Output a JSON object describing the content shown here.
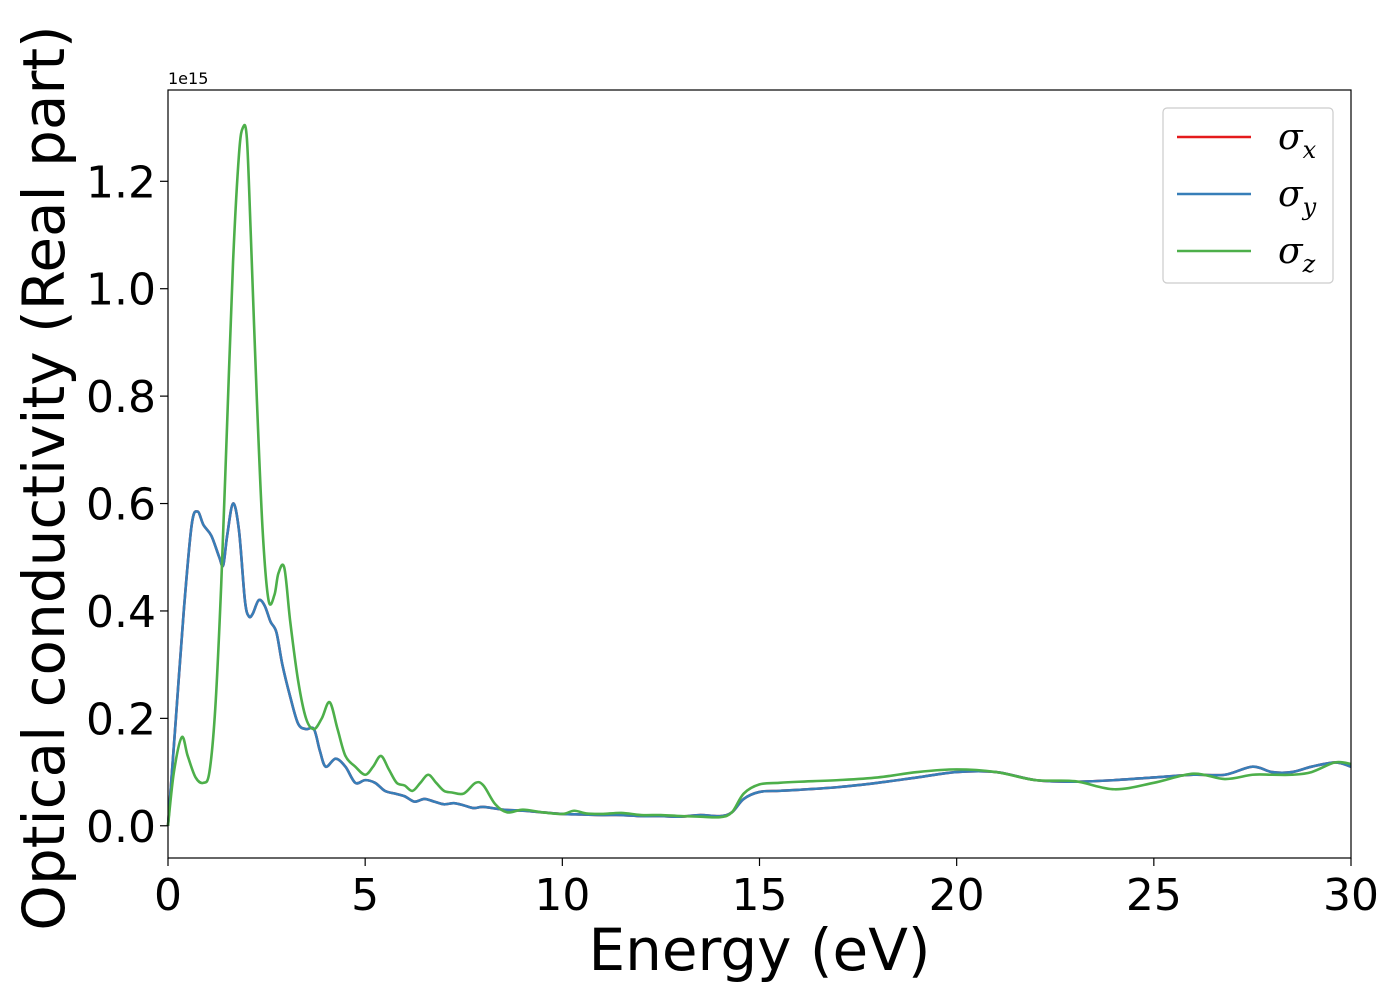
{
  "chart_data": {
    "type": "line",
    "title": "",
    "xlabel": "Energy (eV)",
    "ylabel": "Optical conductivity (Real part)",
    "y_offset_label": "1e15",
    "xlim": [
      0,
      30
    ],
    "ylim": [
      -0.06,
      1.37
    ],
    "xticks": [
      0,
      5,
      10,
      15,
      20,
      25,
      30
    ],
    "xtick_labels": [
      "0",
      "5",
      "10",
      "15",
      "20",
      "25",
      "30"
    ],
    "yticks": [
      0.0,
      0.2,
      0.4,
      0.6,
      0.8,
      1.0,
      1.2
    ],
    "ytick_labels": [
      "0.0",
      "0.2",
      "0.4",
      "0.6",
      "0.8",
      "1.0",
      "1.2"
    ],
    "grid": false,
    "legend_position": "top-right",
    "series": [
      {
        "name": "σx",
        "label_base": "σ",
        "label_sub": "x",
        "color": "#e41a1c",
        "x": [
          0,
          0.2,
          0.4,
          0.6,
          0.75,
          0.9,
          1.1,
          1.3,
          1.4,
          1.5,
          1.65,
          1.8,
          1.95,
          2.05,
          2.15,
          2.3,
          2.45,
          2.6,
          2.75,
          2.9,
          3.1,
          3.3,
          3.5,
          3.7,
          3.85,
          4.0,
          4.25,
          4.5,
          4.75,
          5.0,
          5.25,
          5.5,
          5.75,
          6.0,
          6.25,
          6.5,
          6.75,
          7.0,
          7.25,
          7.5,
          7.75,
          8.0,
          8.5,
          9.0,
          9.5,
          10,
          10.5,
          11,
          11.5,
          12,
          12.5,
          13,
          13.5,
          14,
          14.3,
          14.6,
          15.0,
          15.5,
          16,
          17,
          18,
          19,
          20,
          21,
          22,
          23,
          24,
          25,
          26,
          26.8,
          27.5,
          28,
          28.5,
          29,
          29.6,
          30
        ],
        "y": [
          0.0,
          0.2,
          0.4,
          0.56,
          0.585,
          0.56,
          0.54,
          0.5,
          0.485,
          0.54,
          0.6,
          0.55,
          0.42,
          0.39,
          0.395,
          0.42,
          0.41,
          0.38,
          0.36,
          0.3,
          0.24,
          0.19,
          0.18,
          0.18,
          0.14,
          0.11,
          0.125,
          0.11,
          0.08,
          0.085,
          0.08,
          0.065,
          0.06,
          0.055,
          0.045,
          0.05,
          0.045,
          0.04,
          0.042,
          0.038,
          0.033,
          0.035,
          0.03,
          0.028,
          0.025,
          0.022,
          0.021,
          0.02,
          0.02,
          0.018,
          0.018,
          0.017,
          0.02,
          0.018,
          0.025,
          0.05,
          0.063,
          0.065,
          0.067,
          0.072,
          0.08,
          0.09,
          0.1,
          0.1,
          0.085,
          0.082,
          0.085,
          0.09,
          0.095,
          0.095,
          0.11,
          0.1,
          0.1,
          0.11,
          0.118,
          0.11
        ]
      },
      {
        "name": "σy",
        "label_base": "σ",
        "label_sub": "y",
        "color": "#377eb8",
        "x": [
          0,
          0.2,
          0.4,
          0.6,
          0.75,
          0.9,
          1.1,
          1.3,
          1.4,
          1.5,
          1.65,
          1.8,
          1.95,
          2.05,
          2.15,
          2.3,
          2.45,
          2.6,
          2.75,
          2.9,
          3.1,
          3.3,
          3.5,
          3.7,
          3.85,
          4.0,
          4.25,
          4.5,
          4.75,
          5.0,
          5.25,
          5.5,
          5.75,
          6.0,
          6.25,
          6.5,
          6.75,
          7.0,
          7.25,
          7.5,
          7.75,
          8.0,
          8.5,
          9.0,
          9.5,
          10,
          10.5,
          11,
          11.5,
          12,
          12.5,
          13,
          13.5,
          14,
          14.3,
          14.6,
          15.0,
          15.5,
          16,
          17,
          18,
          19,
          20,
          21,
          22,
          23,
          24,
          25,
          26,
          26.8,
          27.5,
          28,
          28.5,
          29,
          29.6,
          30
        ],
        "y": [
          0.0,
          0.2,
          0.4,
          0.56,
          0.585,
          0.56,
          0.54,
          0.5,
          0.485,
          0.54,
          0.6,
          0.55,
          0.42,
          0.39,
          0.395,
          0.42,
          0.41,
          0.38,
          0.36,
          0.3,
          0.24,
          0.19,
          0.18,
          0.18,
          0.14,
          0.11,
          0.125,
          0.11,
          0.08,
          0.085,
          0.08,
          0.065,
          0.06,
          0.055,
          0.045,
          0.05,
          0.045,
          0.04,
          0.042,
          0.038,
          0.033,
          0.035,
          0.03,
          0.028,
          0.025,
          0.022,
          0.021,
          0.02,
          0.02,
          0.018,
          0.018,
          0.017,
          0.02,
          0.018,
          0.025,
          0.05,
          0.063,
          0.065,
          0.067,
          0.072,
          0.08,
          0.09,
          0.1,
          0.1,
          0.085,
          0.082,
          0.085,
          0.09,
          0.095,
          0.095,
          0.11,
          0.1,
          0.1,
          0.11,
          0.118,
          0.11
        ]
      },
      {
        "name": "σz",
        "label_base": "σ",
        "label_sub": "z",
        "color": "#4daf4a",
        "x": [
          0,
          0.15,
          0.35,
          0.5,
          0.7,
          0.9,
          1.05,
          1.2,
          1.35,
          1.5,
          1.65,
          1.8,
          1.9,
          2.0,
          2.1,
          2.25,
          2.4,
          2.55,
          2.7,
          2.8,
          2.95,
          3.1,
          3.3,
          3.5,
          3.7,
          3.9,
          4.1,
          4.3,
          4.5,
          4.75,
          5.0,
          5.2,
          5.4,
          5.6,
          5.8,
          6.0,
          6.2,
          6.4,
          6.6,
          6.8,
          7.0,
          7.2,
          7.5,
          7.8,
          8.0,
          8.3,
          8.6,
          9.0,
          9.5,
          10,
          10.3,
          10.6,
          11,
          11.5,
          12,
          12.5,
          13,
          13.5,
          14,
          14.3,
          14.6,
          15.0,
          15.5,
          16,
          17,
          18,
          19,
          20,
          21,
          22,
          23,
          24,
          25,
          26,
          26.8,
          27.5,
          28,
          28.5,
          29,
          29.6,
          30
        ],
        "y": [
          0.0,
          0.1,
          0.165,
          0.13,
          0.09,
          0.08,
          0.1,
          0.22,
          0.45,
          0.75,
          1.05,
          1.25,
          1.3,
          1.28,
          1.1,
          0.8,
          0.55,
          0.42,
          0.43,
          0.47,
          0.48,
          0.38,
          0.27,
          0.2,
          0.18,
          0.2,
          0.23,
          0.18,
          0.13,
          0.11,
          0.095,
          0.11,
          0.13,
          0.105,
          0.08,
          0.075,
          0.065,
          0.08,
          0.095,
          0.08,
          0.065,
          0.062,
          0.06,
          0.08,
          0.075,
          0.04,
          0.025,
          0.03,
          0.025,
          0.022,
          0.028,
          0.023,
          0.022,
          0.024,
          0.02,
          0.02,
          0.018,
          0.017,
          0.016,
          0.025,
          0.06,
          0.077,
          0.08,
          0.082,
          0.085,
          0.09,
          0.1,
          0.105,
          0.1,
          0.085,
          0.083,
          0.068,
          0.08,
          0.097,
          0.087,
          0.095,
          0.095,
          0.095,
          0.1,
          0.118,
          0.115
        ]
      }
    ]
  }
}
